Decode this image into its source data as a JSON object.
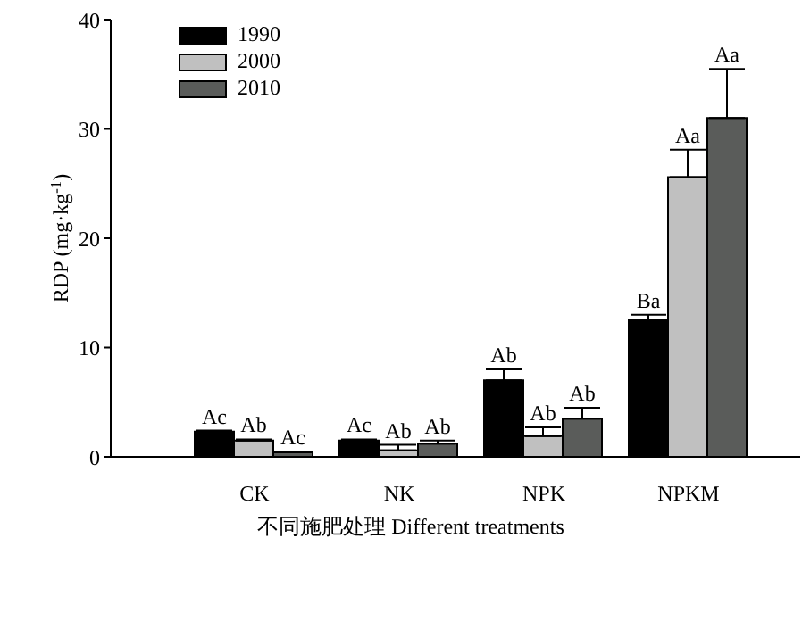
{
  "chart_data": {
    "type": "bar",
    "xlabel": "不同施肥处理 Different treatments",
    "ylabel": "RDP (mg·kg$^{-1}$)",
    "categories": [
      "CK",
      "NK",
      "NPK",
      "NPKM"
    ],
    "series": [
      {
        "name": "1990",
        "color": "#000000",
        "values": [
          2.3,
          1.5,
          7.0,
          12.5
        ],
        "errors": [
          0.1,
          0.1,
          1.0,
          0.5
        ],
        "value_labels": [
          "Ac",
          "Ac",
          "Ab",
          "Ba"
        ]
      },
      {
        "name": "2000",
        "color": "#c0c0c0",
        "values": [
          1.5,
          0.6,
          1.9,
          25.6
        ],
        "errors": [
          0.1,
          0.5,
          0.8,
          2.5
        ],
        "value_labels": [
          "Ab",
          "Ab",
          "Ab",
          "Aa"
        ]
      },
      {
        "name": "2010",
        "color": "#5a5c5a",
        "values": [
          0.4,
          1.2,
          3.5,
          31.0
        ],
        "errors": [
          0.1,
          0.3,
          1.0,
          4.5
        ],
        "value_labels": [
          "Ac",
          "Ab",
          "Ab",
          "Aa"
        ]
      }
    ],
    "ylim": [
      0,
      40
    ],
    "yticks": [
      0,
      10,
      20,
      30,
      40
    ],
    "legend": "top left"
  }
}
